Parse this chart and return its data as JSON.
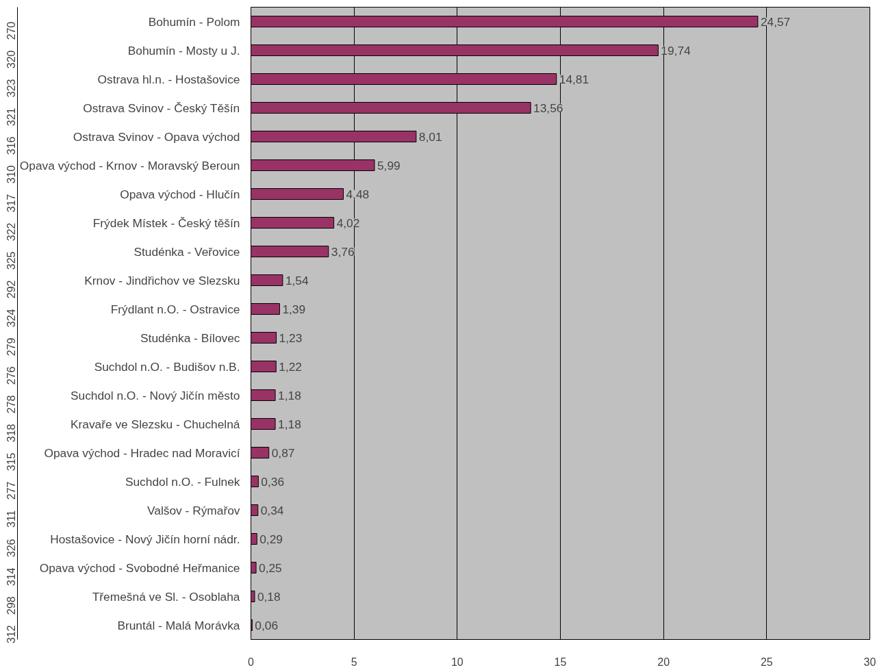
{
  "chart_data": {
    "type": "bar",
    "orientation": "horizontal",
    "categories": [
      "Bohumín - Polom",
      "Bohumín - Mosty u J.",
      "Ostrava hl.n. - Hostašovice",
      "Ostrava Svinov - Český Těšín",
      "Ostrava Svinov - Opava východ",
      "Opava východ - Krnov - Moravský Beroun",
      "Opava východ - Hlučín",
      "Frýdek Místek - Český těšín",
      "Studénka - Veřovice",
      "Krnov - Jindřichov ve Slezsku",
      "Frýdlant n.O. - Ostravice",
      "Studénka - Bílovec",
      "Suchdol n.O. - Budišov n.B.",
      "Suchdol n.O. - Nový Jičín město",
      "Kravaře ve Slezsku - Chuchelná",
      "Opava východ - Hradec nad Moravicí",
      "Suchdol n.O. - Fulnek",
      "Valšov - Rýmařov",
      "Hostašovice - Nový Jičín horní nádr.",
      "Opava východ - Svobodné Heřmanice",
      "Třemešná ve Sl. - Osoblaha",
      "Bruntál - Malá Morávka"
    ],
    "values": [
      24.57,
      19.74,
      14.81,
      13.56,
      8.01,
      5.99,
      4.48,
      4.02,
      3.76,
      1.54,
      1.39,
      1.23,
      1.22,
      1.18,
      1.18,
      0.87,
      0.36,
      0.34,
      0.29,
      0.25,
      0.18,
      0.06
    ],
    "value_labels": [
      "24,57",
      "19,74",
      "14,81",
      "13,56",
      "8,01",
      "5,99",
      "4,48",
      "4,02",
      "3,76",
      "1,54",
      "1,39",
      "1,23",
      "1,22",
      "1,18",
      "1,18",
      "0,87",
      "0,36",
      "0,34",
      "0,29",
      "0,25",
      "0,18",
      "0,06"
    ],
    "color": "#993366",
    "xlim": [
      0,
      30
    ],
    "xticks": [
      0,
      5,
      10,
      15,
      20,
      25,
      30
    ],
    "grid": "x",
    "annotations": [
      "270",
      "320",
      "323",
      "321",
      "316",
      "310",
      "317",
      "322",
      "325",
      "292",
      "324",
      "279",
      "276",
      "278",
      "318",
      "315",
      "277",
      "311",
      "326",
      "314",
      "298",
      "312"
    ]
  }
}
